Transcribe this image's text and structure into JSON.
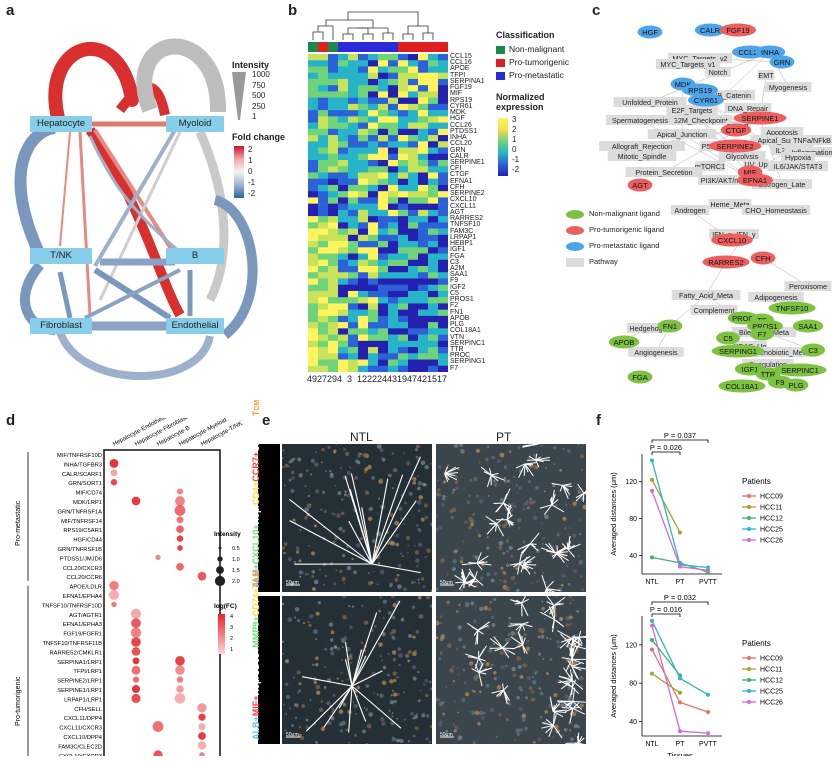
{
  "panel_labels": {
    "a": "a",
    "b": "b",
    "c": "c",
    "d": "d",
    "e": "e",
    "f": "f"
  },
  "panel_a": {
    "nodes": [
      "Hepatocyte",
      "Myoloid",
      "T/NK",
      "B",
      "Fibroblast",
      "Endothelial"
    ],
    "intensity_title": "Intensity",
    "intensity_ticks": [
      "1000",
      "750",
      "500",
      "250",
      "1"
    ],
    "fold_title": "Fold change",
    "fold_ticks": [
      "2",
      "1",
      "0",
      "-1",
      "-2"
    ],
    "colors": {
      "red": "#d9302f",
      "blue": "#7a98bd",
      "grey": "#bdbdbd",
      "node": "#87ceeb"
    }
  },
  "panel_b": {
    "genes": [
      "CCL15",
      "CCL16",
      "APOE",
      "TFPI",
      "SERPINA1",
      "FGF19",
      "MIF",
      "RPS19",
      "CYR61",
      "MDK",
      "HGF",
      "CCL26",
      "PTDSS1",
      "INHA",
      "CCL20",
      "GRN",
      "CALR",
      "SERPINE1",
      "CFI",
      "CTGF",
      "EFNA1",
      "CFH",
      "SERPINE2",
      "CXCL10",
      "CXCL11",
      "AGT",
      "RARRES2",
      "TNFSF10",
      "FAM3C",
      "LRPAP1",
      "HEBP1",
      "IGF1",
      "FGA",
      "C3",
      "A2M",
      "SAA1",
      "F9",
      "IGF2",
      "C5",
      "PROS1",
      "F2",
      "FN1",
      "APOB",
      "PLG",
      "COL18A1",
      "VTN",
      "SERPINC1",
      "TTR",
      "PROC",
      "SERPING1",
      "F7"
    ],
    "samples": [
      "49",
      "27",
      "29",
      "4",
      "3",
      "12",
      "22",
      "24",
      "43",
      "19",
      "47",
      "42",
      "15",
      "17"
    ],
    "sample_class": [
      "nm",
      "pt",
      "nm",
      "pm",
      "pm",
      "pm",
      "pm",
      "pm",
      "pm",
      "pt",
      "pt",
      "pt",
      "pt",
      "pt"
    ],
    "legend_title": "Classification",
    "legend": [
      {
        "key": "nm",
        "label": "Non-malignant",
        "color": "#1a8a4a"
      },
      {
        "key": "pt",
        "label": "Pro-tumorigenic",
        "color": "#e02020"
      },
      {
        "key": "pm",
        "label": "Pro-metastatic",
        "color": "#2a2ad8"
      }
    ],
    "scale_title": "Normalized expression",
    "scale_ticks": [
      "3",
      "2",
      "1",
      "0",
      "-1",
      "-2"
    ]
  },
  "panel_c": {
    "legend": [
      {
        "label": "Non-malignant ligand",
        "color": "#7dc242"
      },
      {
        "label": "Pro-tumorigenic ligand",
        "color": "#ec5f5f"
      },
      {
        "label": "Pro-metastatic ligand",
        "color": "#4da4e8"
      },
      {
        "label": "Pathway",
        "color": "#dcdcdc"
      }
    ],
    "nodes": [
      {
        "t": "HGF",
        "c": "pm"
      },
      {
        "t": "CALR",
        "c": "pm"
      },
      {
        "t": "FGF19",
        "c": "pt"
      },
      {
        "t": "CCL20",
        "c": "pm"
      },
      {
        "t": "INHA",
        "c": "pm"
      },
      {
        "t": "GRN",
        "c": "pm"
      },
      {
        "t": "MDK",
        "c": "pm"
      },
      {
        "t": "RPS19",
        "c": "pm"
      },
      {
        "t": "CYR61",
        "c": "pm"
      },
      {
        "t": "SERPINE1",
        "c": "pt"
      },
      {
        "t": "CTGF",
        "c": "pt"
      },
      {
        "t": "SERPINE2",
        "c": "pt"
      },
      {
        "t": "MIF",
        "c": "pt"
      },
      {
        "t": "EFNA1",
        "c": "pt"
      },
      {
        "t": "AGT",
        "c": "pt"
      },
      {
        "t": "CXCL10",
        "c": "pt"
      },
      {
        "t": "CFH",
        "c": "pt"
      },
      {
        "t": "RARRES2",
        "c": "pt"
      },
      {
        "t": "TNFSF10",
        "c": "nm"
      },
      {
        "t": "FN1",
        "c": "nm"
      },
      {
        "t": "PROC",
        "c": "nm"
      },
      {
        "t": "TF",
        "c": "nm"
      },
      {
        "t": "PROS1",
        "c": "nm"
      },
      {
        "t": "SAA1",
        "c": "nm"
      },
      {
        "t": "F7",
        "c": "nm"
      },
      {
        "t": "C5",
        "c": "nm"
      },
      {
        "t": "APOB",
        "c": "nm"
      },
      {
        "t": "SERPING1",
        "c": "nm"
      },
      {
        "t": "C3",
        "c": "nm"
      },
      {
        "t": "IGF1",
        "c": "nm"
      },
      {
        "t": "TTR",
        "c": "nm"
      },
      {
        "t": "SERPINC1",
        "c": "nm"
      },
      {
        "t": "FGA",
        "c": "nm"
      },
      {
        "t": "COL18A1",
        "c": "nm"
      },
      {
        "t": "F9",
        "c": "nm"
      },
      {
        "t": "PLG",
        "c": "nm"
      }
    ],
    "pathways": [
      "MYC_Targets_v2",
      "MYC_Targets_v1",
      "Notch",
      "EMT",
      "Myogenesis",
      "WNT/B_Catenin",
      "Unfolded_Protein",
      "DNA_Repair",
      "E2F_Targets",
      "G2M_Checkpoint",
      "Spermatogenesis",
      "TGF-B",
      "Apoptosis",
      "Apical_Junction",
      "Apical_Surf",
      "TNFa/NFkB",
      "Allograft_Rejection",
      "P53",
      "IL2/STAT5",
      "Inflammation",
      "Mitotic_Spindle",
      "Glycolysis",
      "Hypoxia",
      "mTORC1",
      "UV_Up",
      "IL6/JAK/STAT3",
      "Protein_Secretion",
      "PI3K/AKT/mTOR",
      "Estrogen_Late",
      "Heme_Meta",
      "Androgen",
      "CHO_Homeostasis",
      "IFN_a",
      "IFN_y",
      "Peroxisome",
      "Fatty_Acid_Meta",
      "Adipogenesis",
      "Complement",
      "Hedgehog",
      "Bile_Acid_Meta",
      "KRAS_Up",
      "Angiogenesis",
      "Xenobiotic_Meta",
      "Coagulation"
    ]
  },
  "panel_d": {
    "columns": [
      "Hepatocyte-Endothelial",
      "Hepatocyte-Fibroblast",
      "Hepatocyte-B",
      "Hepatocyte-Myeloid",
      "Hepatocyte-T/NK"
    ],
    "rows": [
      "MIF/TNFRSF10D",
      "INHA/TGFBR3",
      "CALR/SCARF1",
      "GRN/SORT1",
      "MIF/CD74",
      "MDK/LRP1",
      "GRN/TNFRSF1A",
      "MIF/TNFRSF14",
      "RPS19/C5AR1",
      "HGF/CD44",
      "GRN/TNFRSF1B",
      "PTDSS1/JMJD6",
      "CCL20/CXCR3",
      "CCL20/CCR6",
      "APOE/LDLR",
      "EFNA1/EPHA4",
      "TNFSF10/TNFRSF10D",
      "AGT/AGTR1",
      "EFNA1/EPHA3",
      "FGF19/FGFR1",
      "TNFSF10/TNFRSF11B",
      "RARRES2/CMKLR1",
      "SERPINA1/LRP1",
      "TFPI/LRP1",
      "SERPINE2/LRP1",
      "SERPINE1/LRP1",
      "LRPAP1/LRP1",
      "CFH/SELL",
      "CXCL11/DPP4",
      "CXCL11/CXCR3",
      "CXCL10/DPP4",
      "FAM3C/CLEC2D",
      "CXCL10/CXCR3"
    ],
    "group_labels": [
      "Pro-metastatic",
      "Pro-tumorigenic"
    ],
    "size_title": "Intensity",
    "size_ticks": [
      "0.5",
      "1.0",
      "1.5",
      "2.0"
    ],
    "color_title": "log(FC)",
    "color_ticks": [
      "4",
      "3",
      "2",
      "1"
    ]
  },
  "panel_e": {
    "col_titles": [
      "NTL",
      "PT"
    ],
    "row1_label": [
      "ALB+",
      "CXCL10+",
      "Hep/",
      "CD4+",
      "CCR7+",
      "CXCR3+",
      "T",
      "CM"
    ],
    "row2_label": [
      "ALB+",
      "MIF+",
      "Hep/",
      "CD68+",
      "MMP9+",
      "CD74+",
      "TAM"
    ],
    "scalebar": "50μm"
  },
  "panel_f": {
    "chart_data": [
      {
        "type": "line",
        "categories": [
          "NTL",
          "PT",
          "PVTT"
        ],
        "ylabel": "Averaged distances (μm)",
        "yticks": [
          40,
          80,
          120
        ],
        "ylim": [
          20,
          150
        ],
        "annotations": [
          "P = 0.037",
          "P = 0.026"
        ],
        "series": [
          {
            "name": "HCC09",
            "values": [
              null,
              null,
              null
            ]
          },
          {
            "name": "HCC11",
            "values": [
              122,
              65,
              null
            ]
          },
          {
            "name": "HCC12",
            "values": [
              38,
              32,
              22
            ]
          },
          {
            "name": "HCC25",
            "values": [
              143,
              30,
              27
            ]
          },
          {
            "name": "HCC26",
            "values": [
              110,
              28,
              24
            ]
          }
        ]
      },
      {
        "type": "line",
        "categories": [
          "NTL",
          "PT",
          "PVTT"
        ],
        "xlabel": "Tissues",
        "ylabel": "Averaged distances (μm)",
        "yticks": [
          40,
          80,
          120
        ],
        "ylim": [
          25,
          150
        ],
        "annotations": [
          "P = 0.032",
          "P = 0.016"
        ],
        "series": [
          {
            "name": "HCC09",
            "values": [
              115,
              60,
              50
            ]
          },
          {
            "name": "HCC11",
            "values": [
              90,
              70,
              null
            ]
          },
          {
            "name": "HCC12",
            "values": [
              125,
              88,
              null
            ]
          },
          {
            "name": "HCC25",
            "values": [
              145,
              85,
              68
            ]
          },
          {
            "name": "HCC26",
            "values": [
              140,
              30,
              28
            ]
          }
        ]
      }
    ],
    "legend_title": "Patients",
    "series_colors": {
      "HCC09": "#e8706a",
      "HCC11": "#a4a12e",
      "HCC12": "#3cb56c",
      "HCC25": "#2bb8c6",
      "HCC26": "#d26ad8"
    }
  }
}
